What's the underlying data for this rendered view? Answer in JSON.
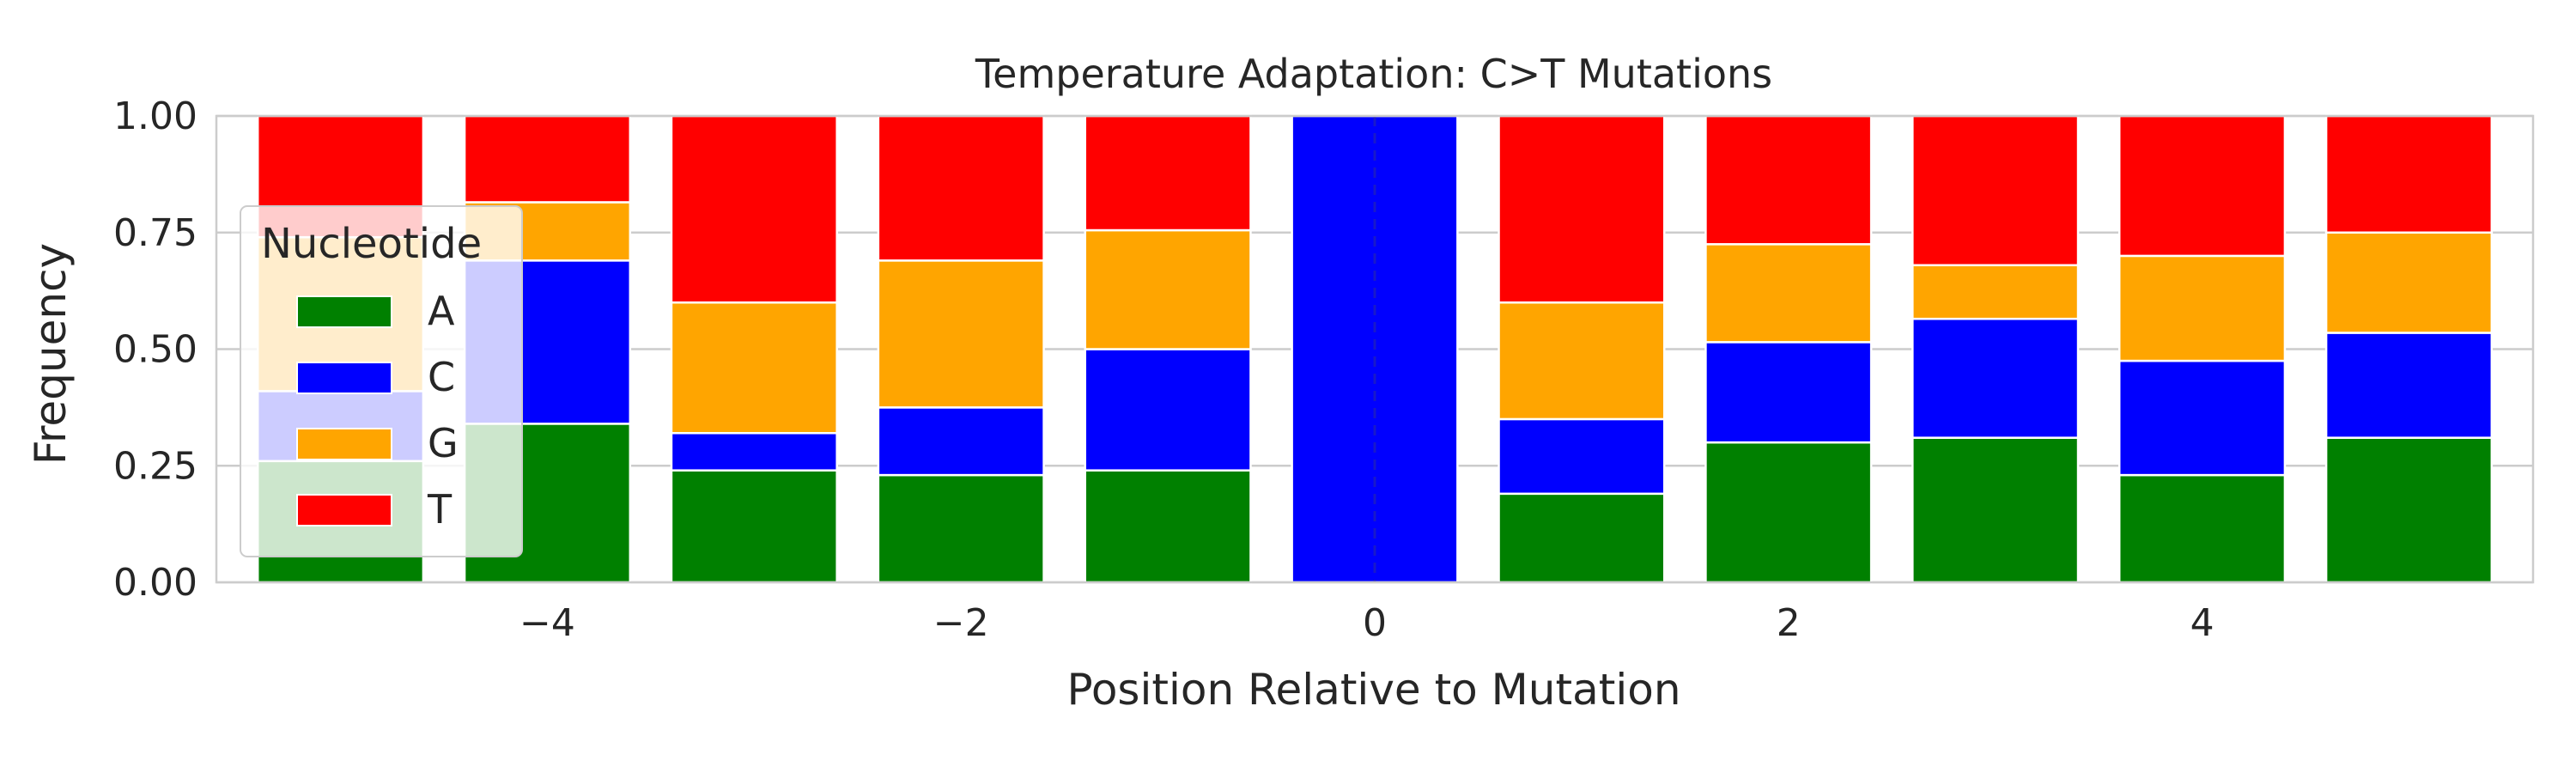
{
  "chart_data": {
    "type": "bar",
    "stacked": true,
    "title": "Temperature Adaptation: C>T Mutations",
    "xlabel": "Position Relative to Mutation",
    "ylabel": "Frequency",
    "x": [
      -5,
      -4,
      -3,
      -2,
      -1,
      0,
      1,
      2,
      3,
      4,
      5
    ],
    "xlim": [
      -5.6,
      5.6
    ],
    "ylim": [
      0,
      1
    ],
    "xticks": [
      -4,
      -2,
      0,
      2,
      4
    ],
    "xtick_labels": [
      "−4",
      "−2",
      "0",
      "2",
      "4"
    ],
    "yticks": [
      0,
      0.25,
      0.5,
      0.75,
      1.0
    ],
    "ytick_labels": [
      "0.00",
      "0.25",
      "0.50",
      "0.75",
      "1.00"
    ],
    "grid": "horizontal",
    "reference_line_x": 0,
    "legend": {
      "title": "Nucleotide",
      "placement": "upper-left"
    },
    "series": [
      {
        "name": "A",
        "color": "#008000",
        "values": [
          0.26,
          0.34,
          0.24,
          0.23,
          0.24,
          0.0,
          0.19,
          0.3,
          0.31,
          0.23,
          0.31
        ]
      },
      {
        "name": "C",
        "color": "#0000ff",
        "values": [
          0.15,
          0.35,
          0.08,
          0.145,
          0.26,
          1.0,
          0.16,
          0.215,
          0.255,
          0.245,
          0.225
        ]
      },
      {
        "name": "G",
        "color": "#ffa500",
        "values": [
          0.33,
          0.125,
          0.28,
          0.315,
          0.255,
          0.0,
          0.25,
          0.21,
          0.115,
          0.225,
          0.215
        ]
      },
      {
        "name": "T",
        "color": "#ff0000",
        "values": [
          0.26,
          0.185,
          0.4,
          0.31,
          0.245,
          0.0,
          0.4,
          0.275,
          0.32,
          0.3,
          0.25
        ]
      }
    ]
  }
}
